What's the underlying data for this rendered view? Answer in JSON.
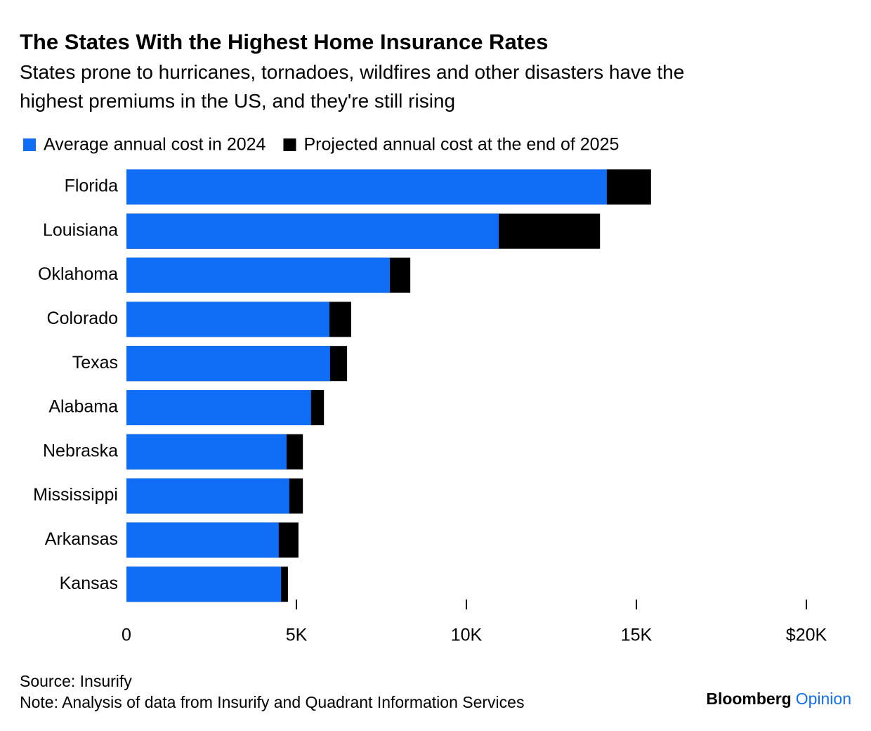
{
  "chart_data": {
    "type": "bar",
    "orientation": "horizontal",
    "title": "The States With the Highest Home Insurance Rates",
    "subtitle": "States prone to hurricanes, tornadoes, wildfires and other disasters have the highest premiums in the US, and they're still rising",
    "categories": [
      "Florida",
      "Louisiana",
      "Oklahoma",
      "Colorado",
      "Texas",
      "Alabama",
      "Nebraska",
      "Mississippi",
      "Arkansas",
      "Kansas"
    ],
    "series": [
      {
        "name": "Average annual cost in 2024",
        "color": "#0f6ef5",
        "values": [
          14130,
          10950,
          7750,
          5970,
          5990,
          5430,
          4710,
          4790,
          4480,
          4550
        ]
      },
      {
        "name": "Projected annual cost at the end of 2025",
        "color": "#000000",
        "values": [
          15430,
          13930,
          8350,
          6610,
          6490,
          5810,
          5190,
          5190,
          5060,
          4750
        ]
      }
    ],
    "xlim": [
      0,
      20000
    ],
    "xticks": [
      0,
      {
        "value": 5000,
        "label": "5K"
      },
      {
        "value": 10000,
        "label": "10K"
      },
      {
        "value": 15000,
        "label": "15K"
      },
      {
        "value": 20000,
        "label": "$20K"
      }
    ],
    "legend": "top-left",
    "source": "Source: Insurify",
    "note": "Note: Analysis of data from Insurify and Quadrant Information Services",
    "credit": {
      "name": "Bloomberg",
      "section": "Opinion"
    }
  }
}
